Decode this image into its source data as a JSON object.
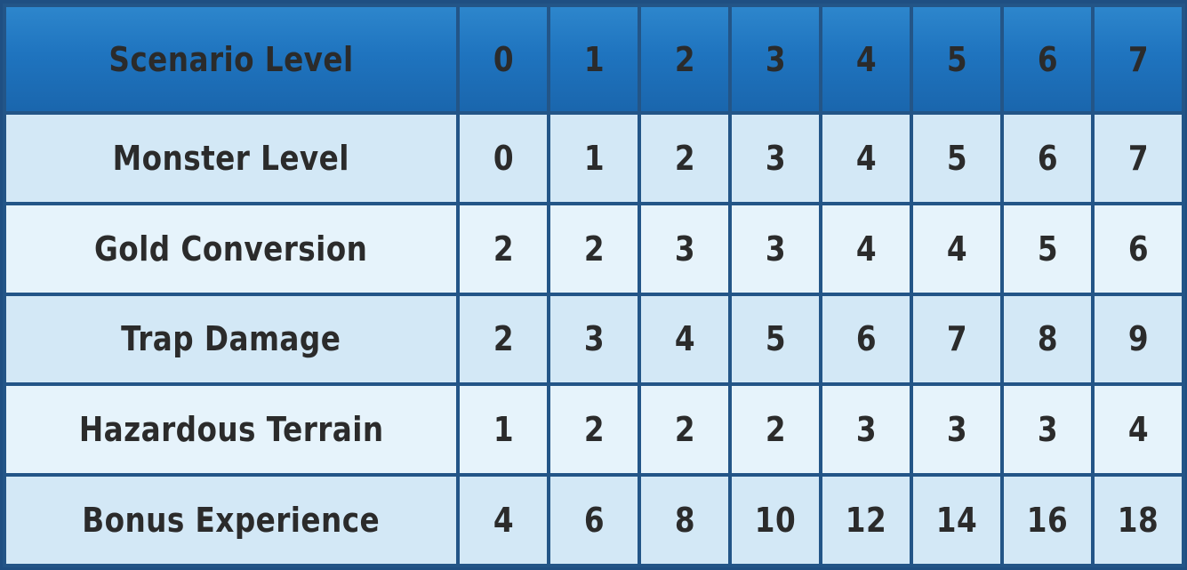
{
  "table": {
    "header": {
      "label": "Scenario Level",
      "levels": [
        "0",
        "1",
        "2",
        "3",
        "4",
        "5",
        "6",
        "7"
      ]
    },
    "rows": [
      {
        "label": "Monster Level",
        "values": [
          "0",
          "1",
          "2",
          "3",
          "4",
          "5",
          "6",
          "7"
        ]
      },
      {
        "label": "Gold Conversion",
        "values": [
          "2",
          "2",
          "3",
          "3",
          "4",
          "4",
          "5",
          "6"
        ]
      },
      {
        "label": "Trap Damage",
        "values": [
          "2",
          "3",
          "4",
          "5",
          "6",
          "7",
          "8",
          "9"
        ]
      },
      {
        "label": "Hazardous Terrain",
        "values": [
          "1",
          "2",
          "2",
          "2",
          "3",
          "3",
          "3",
          "4"
        ]
      },
      {
        "label": "Bonus Experience",
        "values": [
          "4",
          "6",
          "8",
          "10",
          "12",
          "14",
          "16",
          "18"
        ]
      }
    ]
  },
  "colors": {
    "header_bg": "#1f74bf",
    "row_dark": "#d3e8f6",
    "row_light": "#e6f3fb",
    "grid_lines": "#235587",
    "text": "#2b2b2b",
    "header_text": "#ffffff"
  }
}
